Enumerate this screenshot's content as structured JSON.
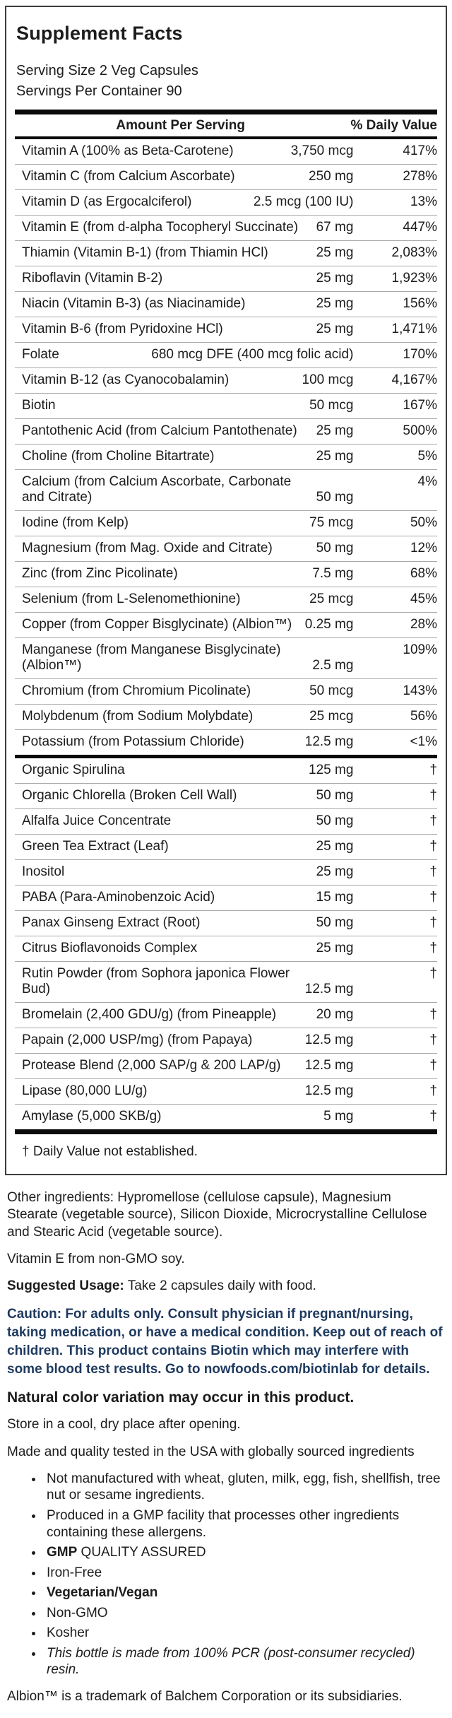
{
  "panel": {
    "title": "Supplement Facts",
    "serving_size": "Serving Size 2 Veg Capsules",
    "servings_per_container": "Servings Per Container 90",
    "col_amount": "Amount Per Serving",
    "col_dv": "% Daily Value",
    "footnote": "† Daily Value not established.",
    "sections": [
      {
        "rows": [
          {
            "name": "Vitamin A (100% as Beta-Carotene)",
            "amount": "3,750 mcg",
            "dv": "417%"
          },
          {
            "name": "Vitamin C (from Calcium Ascorbate)",
            "amount": "250 mg",
            "dv": "278%"
          },
          {
            "name": "Vitamin D (as Ergocalciferol)",
            "amount": "2.5 mcg (100 IU)",
            "dv": "13%"
          },
          {
            "name": "Vitamin E (from d-alpha Tocopheryl Succinate)",
            "amount": "67 mg",
            "dv": "447%"
          },
          {
            "name": "Thiamin (Vitamin B-1) (from Thiamin HCl)",
            "amount": "25 mg",
            "dv": "2,083%"
          },
          {
            "name": "Riboflavin (Vitamin B-2)",
            "amount": "25 mg",
            "dv": "1,923%"
          },
          {
            "name": "Niacin (Vitamin B-3) (as Niacinamide)",
            "amount": "25 mg",
            "dv": "156%"
          },
          {
            "name": "Vitamin B-6 (from Pyridoxine HCl)",
            "amount": "25 mg",
            "dv": "1,471%"
          },
          {
            "name": "Folate",
            "amount": "680 mcg DFE (400 mcg folic acid)",
            "dv": "170%"
          },
          {
            "name": "Vitamin B-12 (as Cyanocobalamin)",
            "amount": "100 mcg",
            "dv": "4,167%"
          },
          {
            "name": "Biotin",
            "amount": "50 mcg",
            "dv": "167%"
          },
          {
            "name": "Pantothenic Acid (from Calcium Pantothenate)",
            "amount": "25 mg",
            "dv": "500%"
          },
          {
            "name": "Choline (from Choline Bitartrate)",
            "amount": "25 mg",
            "dv": "5%"
          },
          {
            "name": "Calcium (from Calcium Ascorbate, Carbonate and Citrate)",
            "amount": "50 mg",
            "dv": "4%",
            "wrap": true
          },
          {
            "name": "Iodine (from Kelp)",
            "amount": "75 mcg",
            "dv": "50%"
          },
          {
            "name": "Magnesium (from Mag. Oxide and Citrate)",
            "amount": "50 mg",
            "dv": "12%"
          },
          {
            "name": "Zinc (from Zinc Picolinate)",
            "amount": "7.5 mg",
            "dv": "68%"
          },
          {
            "name": "Selenium (from L-Selenomethionine)",
            "amount": "25 mcg",
            "dv": "45%"
          },
          {
            "name": "Copper (from Copper Bisglycinate) (Albion™)",
            "amount": "0.25 mg",
            "dv": "28%"
          },
          {
            "name": "Manganese (from Manganese Bisglycinate) (Albion™)",
            "amount": "2.5 mg",
            "dv": "109%",
            "wrap": true
          },
          {
            "name": "Chromium (from Chromium Picolinate)",
            "amount": "50 mcg",
            "dv": "143%"
          },
          {
            "name": "Molybdenum (from Sodium Molybdate)",
            "amount": "25 mcg",
            "dv": "56%"
          },
          {
            "name": "Potassium (from Potassium Chloride)",
            "amount": "12.5 mg",
            "dv": "<1%"
          }
        ]
      },
      {
        "rows": [
          {
            "name": "Organic Spirulina",
            "amount": "125 mg",
            "dv": "†"
          },
          {
            "name": "Organic Chlorella (Broken Cell Wall)",
            "amount": "50 mg",
            "dv": "†"
          },
          {
            "name": "Alfalfa Juice Concentrate",
            "amount": "50 mg",
            "dv": "†"
          },
          {
            "name": "Green Tea Extract (Leaf)",
            "amount": "25 mg",
            "dv": "†"
          },
          {
            "name": "Inositol",
            "amount": "25 mg",
            "dv": "†"
          },
          {
            "name": "PABA (Para-Aminobenzoic Acid)",
            "amount": "15 mg",
            "dv": "†"
          },
          {
            "name": "Panax Ginseng Extract (Root)",
            "amount": "50 mg",
            "dv": "†"
          },
          {
            "name": "Citrus Bioflavonoids Complex",
            "amount": "25 mg",
            "dv": "†"
          },
          {
            "name": "Rutin Powder (from Sophora japonica Flower Bud)",
            "amount": "12.5 mg",
            "dv": "†",
            "wrap": true
          },
          {
            "name": "Bromelain (2,400 GDU/g) (from Pineapple)",
            "amount": "20 mg",
            "dv": "†"
          },
          {
            "name": "Papain (2,000 USP/mg) (from Papaya)",
            "amount": "12.5 mg",
            "dv": "†"
          },
          {
            "name": "Protease Blend (2,000 SAP/g & 200 LAP/g)",
            "amount": "12.5 mg",
            "dv": "†"
          },
          {
            "name": "Lipase (80,000 LU/g)",
            "amount": "12.5 mg",
            "dv": "†"
          },
          {
            "name": "Amylase (5,000 SKB/g)",
            "amount": "5 mg",
            "dv": "†"
          }
        ]
      }
    ]
  },
  "footer": {
    "other_ingredients": "Other ingredients: Hypromellose (cellulose capsule), Magnesium Stearate (vegetable source), Silicon Dioxide, Microcrystalline Cellulose and Stearic Acid (vegetable source).",
    "soy_note": "Vitamin E from non-GMO soy.",
    "suggested_usage_label": "Suggested Usage:",
    "suggested_usage_text": " Take 2 capsules daily with food.",
    "caution": "Caution: For adults only. Consult physician if pregnant/nursing, taking medication, or have a medical condition. Keep out of reach of children. This product contains Biotin which may interfere with some blood test results. Go to nowfoods.com/biotinlab for details.",
    "color_note": "Natural color variation may occur in this product.",
    "storage_note": "Store in a cool, dry place after opening.",
    "made_in_note": "Made and quality tested in the USA with globally sourced ingredients",
    "bullets": [
      {
        "text": "Not manufactured with wheat, gluten, milk, egg, fish, shellfish, tree nut or sesame ingredients.",
        "style": "normal"
      },
      {
        "text": "Produced in a GMP facility that processes other ingredients containing these allergens.",
        "style": "normal"
      },
      {
        "prefix": "GMP",
        "text": " QUALITY ASSURED",
        "style": "prefix-bold"
      },
      {
        "text": "Iron-Free",
        "style": "normal"
      },
      {
        "text": "Vegetarian/Vegan",
        "style": "bold"
      },
      {
        "text": "Non-GMO",
        "style": "normal"
      },
      {
        "text": "Kosher",
        "style": "normal"
      },
      {
        "text": "This bottle is made from 100% PCR (post-consumer recycled) resin.",
        "style": "italic"
      }
    ],
    "trademark_note": "Albion™ is a trademark of Balchem Corporation or its subsidiaries."
  },
  "colors": {
    "caution_text": "#1f3a5f",
    "divider_bar": "#0a0a0a",
    "row_separator": "#a9a9a9",
    "panel_border": "#3d3d3d"
  }
}
